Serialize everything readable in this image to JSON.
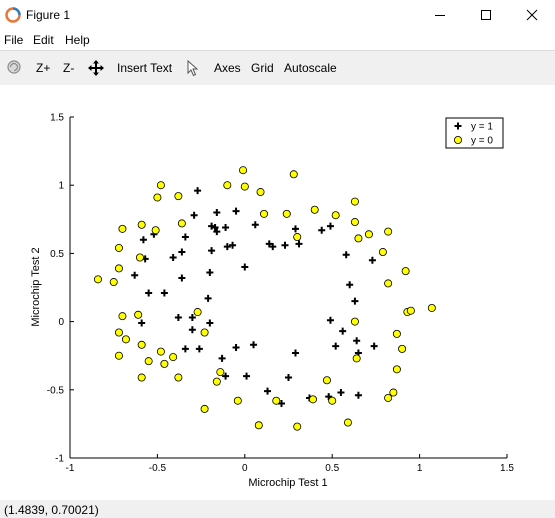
{
  "window": {
    "title": "Figure 1",
    "icon": "octave-icon",
    "controls": [
      "minimize-icon",
      "maximize-icon",
      "close-icon"
    ]
  },
  "menu": {
    "items": [
      "File",
      "Edit",
      "Help"
    ]
  },
  "toolbar": {
    "rotate_icon": "rotate-icon",
    "zoom_in": "Z+",
    "zoom_out": "Z-",
    "pan_icon": "pan-arrows-icon",
    "insert_text": "Insert Text",
    "select_icon": "pointer-icon",
    "axes": "Axes",
    "grid": "Grid",
    "autoscale": "Autoscale"
  },
  "status": {
    "coords": "(1.4839, 0.70021)"
  },
  "colors": {
    "yellow_marker": "#ffff00",
    "axis": "#000000"
  },
  "chart_data": {
    "type": "scatter",
    "xlabel": "Microchip Test 1",
    "ylabel": "Microchip Test 2",
    "xlim": [
      -1,
      1.5
    ],
    "ylim": [
      -1,
      1.5
    ],
    "xticks": [
      -1,
      -0.5,
      0,
      0.5,
      1,
      1.5
    ],
    "xtick_labels": [
      "-1",
      "-0.5",
      "0",
      "0.5",
      "1",
      "1.5"
    ],
    "yticks": [
      -1,
      -0.5,
      0,
      0.5,
      1,
      1.5
    ],
    "ytick_labels": [
      "-1",
      "-0.5",
      "0",
      "0.5",
      "1",
      "1.5"
    ],
    "grid": false,
    "legend_position": "top-right",
    "series": [
      {
        "name": "y = 1",
        "marker": "plus",
        "points": [
          [
            -0.27,
            0.96
          ],
          [
            -0.29,
            0.78
          ],
          [
            -0.16,
            0.8
          ],
          [
            -0.05,
            0.81
          ],
          [
            -0.19,
            0.7
          ],
          [
            -0.17,
            0.69
          ],
          [
            -0.16,
            0.66
          ],
          [
            -0.11,
            0.69
          ],
          [
            -0.1,
            0.55
          ],
          [
            -0.07,
            0.56
          ],
          [
            -0.19,
            0.52
          ],
          [
            0.06,
            0.71
          ],
          [
            0.14,
            0.57
          ],
          [
            0.16,
            0.55
          ],
          [
            0.23,
            0.56
          ],
          [
            0.29,
            0.68
          ],
          [
            0.31,
            0.57
          ],
          [
            0.44,
            0.67
          ],
          [
            0.49,
            0.7
          ],
          [
            -0.58,
            0.6
          ],
          [
            -0.52,
            0.64
          ],
          [
            -0.34,
            0.62
          ],
          [
            -0.36,
            0.51
          ],
          [
            -0.57,
            0.46
          ],
          [
            -0.41,
            0.47
          ],
          [
            -0.63,
            0.34
          ],
          [
            -0.36,
            0.32
          ],
          [
            -0.2,
            0.36
          ],
          [
            -0.21,
            0.17
          ],
          [
            -0.55,
            0.21
          ],
          [
            -0.46,
            0.21
          ],
          [
            -0.59,
            -0.01
          ],
          [
            -0.38,
            0.03
          ],
          [
            -0.3,
            0.03
          ],
          [
            -0.3,
            -0.06
          ],
          [
            -0.2,
            -0.01
          ],
          [
            -0.34,
            -0.2
          ],
          [
            -0.26,
            -0.2
          ],
          [
            -0.13,
            -0.27
          ],
          [
            -0.05,
            -0.19
          ],
          [
            0.05,
            -0.17
          ],
          [
            0.0,
            0.4
          ],
          [
            -0.11,
            -0.4
          ],
          [
            0.01,
            -0.4
          ],
          [
            0.13,
            -0.51
          ],
          [
            0.21,
            -0.6
          ],
          [
            0.25,
            -0.41
          ],
          [
            0.29,
            -0.23
          ],
          [
            0.37,
            -0.56
          ],
          [
            0.48,
            -0.55
          ],
          [
            0.55,
            -0.52
          ],
          [
            0.52,
            -0.18
          ],
          [
            0.49,
            0.01
          ],
          [
            0.56,
            -0.07
          ],
          [
            0.64,
            -0.14
          ],
          [
            0.65,
            -0.23
          ],
          [
            0.65,
            -0.54
          ],
          [
            0.74,
            -0.18
          ],
          [
            0.63,
            0.15
          ],
          [
            0.6,
            0.27
          ],
          [
            0.58,
            0.49
          ],
          [
            0.73,
            0.45
          ]
        ]
      },
      {
        "name": "y = 0",
        "marker": "circle",
        "points": [
          [
            -0.48,
            1.0
          ],
          [
            -0.5,
            0.91
          ],
          [
            -0.38,
            0.92
          ],
          [
            -0.1,
            1.0
          ],
          [
            -0.01,
            1.11
          ],
          [
            0.0,
            0.99
          ],
          [
            0.09,
            0.95
          ],
          [
            0.28,
            1.08
          ],
          [
            0.24,
            0.79
          ],
          [
            0.11,
            0.79
          ],
          [
            0.4,
            0.82
          ],
          [
            0.52,
            0.78
          ],
          [
            0.63,
            0.88
          ],
          [
            0.63,
            0.73
          ],
          [
            0.65,
            0.61
          ],
          [
            0.71,
            0.64
          ],
          [
            0.79,
            0.51
          ],
          [
            0.82,
            0.66
          ],
          [
            0.3,
            0.62
          ],
          [
            -0.59,
            0.71
          ],
          [
            -0.51,
            0.67
          ],
          [
            -0.36,
            0.72
          ],
          [
            -0.7,
            0.68
          ],
          [
            -0.72,
            0.54
          ],
          [
            -0.6,
            0.47
          ],
          [
            -0.72,
            0.39
          ],
          [
            -0.84,
            0.31
          ],
          [
            -0.75,
            0.29
          ],
          [
            -0.7,
            0.04
          ],
          [
            -0.61,
            0.05
          ],
          [
            -0.72,
            -0.08
          ],
          [
            -0.68,
            -0.13
          ],
          [
            -0.27,
            0.07
          ],
          [
            -0.23,
            -0.08
          ],
          [
            -0.59,
            -0.17
          ],
          [
            -0.48,
            -0.22
          ],
          [
            -0.41,
            -0.26
          ],
          [
            -0.72,
            -0.25
          ],
          [
            -0.55,
            -0.29
          ],
          [
            -0.46,
            -0.31
          ],
          [
            -0.59,
            -0.41
          ],
          [
            -0.38,
            -0.41
          ],
          [
            -0.14,
            -0.37
          ],
          [
            -0.16,
            -0.44
          ],
          [
            -0.04,
            -0.58
          ],
          [
            -0.23,
            -0.64
          ],
          [
            0.08,
            -0.76
          ],
          [
            0.18,
            -0.58
          ],
          [
            0.3,
            -0.77
          ],
          [
            0.39,
            -0.57
          ],
          [
            0.47,
            -0.43
          ],
          [
            0.5,
            -0.58
          ],
          [
            0.59,
            -0.74
          ],
          [
            0.64,
            -0.27
          ],
          [
            0.63,
            0.0
          ],
          [
            0.82,
            0.28
          ],
          [
            0.87,
            -0.09
          ],
          [
            0.93,
            0.07
          ],
          [
            0.95,
            0.08
          ],
          [
            1.07,
            0.1
          ],
          [
            0.92,
            0.37
          ],
          [
            0.9,
            -0.2
          ],
          [
            0.87,
            -0.35
          ],
          [
            0.85,
            -0.52
          ],
          [
            0.82,
            -0.56
          ]
        ]
      }
    ]
  }
}
